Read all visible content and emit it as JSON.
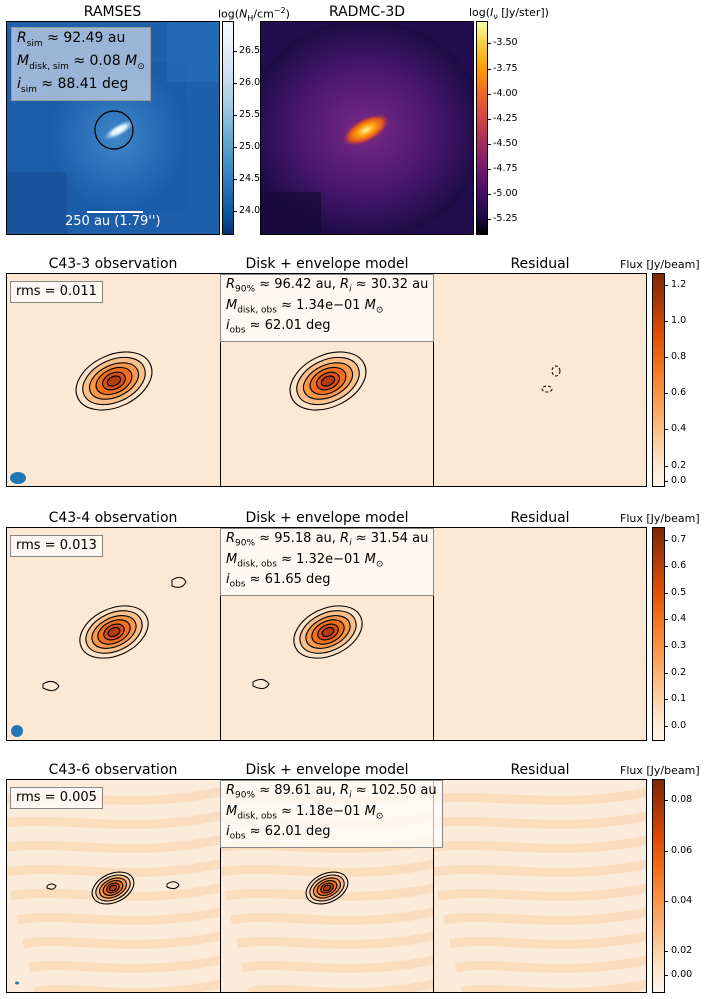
{
  "top": {
    "ramses": {
      "title": "RAMSES",
      "cbar_title": "log(N_H/cm^-2)",
      "cbar_ticks": [
        "26.5",
        "26.0",
        "25.5",
        "25.0",
        "24.5",
        "24.0"
      ],
      "info": [
        "R_sim ≈ 92.49 au",
        "M_disk,sim ≈ 0.08 M_⊙",
        "i_sim ≈ 88.41 deg"
      ],
      "scalebar": "250 au (1.79'')"
    },
    "radmc": {
      "title": "RADMC-3D",
      "cbar_title": "log(I_ν [Jy/ster])",
      "cbar_ticks": [
        "-3.50",
        "-3.75",
        "-4.00",
        "-4.25",
        "-4.50",
        "-4.75",
        "-5.00",
        "-5.25"
      ]
    }
  },
  "rows": [
    {
      "obs_title": "C43-3 observation",
      "model_title": "Disk + envelope model",
      "resid_title": "Residual",
      "cbar_title": "Flux [Jy/beam]",
      "rms": "rms = 0.011",
      "params": [
        "R_90% ≈ 96.42 au, R_i ≈ 30.32 au",
        "M_disk,obs ≈ 1.34e−01 M_⊙",
        "i_obs ≈ 62.01 deg"
      ],
      "cbar_ticks": [
        "1.2",
        "1.0",
        "0.8",
        "0.6",
        "0.4",
        "0.2",
        "0.0"
      ]
    },
    {
      "obs_title": "C43-4 observation",
      "model_title": "Disk + envelope model",
      "resid_title": "Residual",
      "cbar_title": "Flux [Jy/beam]",
      "rms": "rms = 0.013",
      "params": [
        "R_90% ≈ 95.18 au, R_i ≈ 31.54 au",
        "M_disk,obs ≈ 1.32e−01 M_⊙",
        "i_obs ≈ 61.65 deg"
      ],
      "cbar_ticks": [
        "0.7",
        "0.6",
        "0.5",
        "0.4",
        "0.3",
        "0.2",
        "0.1",
        "0.0"
      ]
    },
    {
      "obs_title": "C43-6 observation",
      "model_title": "Disk + envelope model",
      "resid_title": "Residual",
      "cbar_title": "Flux [Jy/beam]",
      "rms": "rms = 0.005",
      "params": [
        "R_90% ≈ 89.61 au, R_i ≈ 102.50 au",
        "M_disk,obs ≈ 1.18e−01 M_⊙",
        "i_obs ≈ 62.01 deg"
      ],
      "cbar_ticks": [
        "0.08",
        "0.06",
        "0.04",
        "0.02",
        "0.00"
      ]
    }
  ],
  "chart_data": [
    {
      "type": "heatmap",
      "title": "RAMSES",
      "colorbar_label": "log(N_H/cm^-2)",
      "colorbar_range": [
        23.6,
        26.9
      ],
      "colormap": "Blues",
      "annotations": [
        "R_sim ≈ 92.49 au",
        "M_disk,sim ≈ 0.08 M_⊙",
        "i_sim ≈ 88.41 deg",
        "250 au (1.79'')"
      ]
    },
    {
      "type": "heatmap",
      "title": "RADMC-3D",
      "colorbar_label": "log(I_ν [Jy/ster])",
      "colorbar_range": [
        -5.35,
        -3.35
      ],
      "colormap": "inferno"
    },
    {
      "type": "heatmap",
      "title": "C43-3 observation / Disk + envelope model / Residual",
      "colorbar_label": "Flux [Jy/beam]",
      "colorbar_range": [
        -0.04,
        1.28
      ],
      "rms": 0.011,
      "R90_au": 96.42,
      "Ri_au": 30.32,
      "Mdisk_obs_Msun": 0.134,
      "i_obs_deg": 62.01
    },
    {
      "type": "heatmap",
      "title": "C43-4 observation / Disk + envelope model / Residual",
      "colorbar_label": "Flux [Jy/beam]",
      "colorbar_range": [
        -0.03,
        0.79
      ],
      "rms": 0.013,
      "R90_au": 95.18,
      "Ri_au": 31.54,
      "Mdisk_obs_Msun": 0.132,
      "i_obs_deg": 61.65
    },
    {
      "type": "heatmap",
      "title": "C43-6 observation / Disk + envelope model / Residual",
      "colorbar_label": "Flux [Jy/beam]",
      "colorbar_range": [
        -0.01,
        0.093
      ],
      "rms": 0.005,
      "R90_au": 89.61,
      "Ri_au": 102.5,
      "Mdisk_obs_Msun": 0.118,
      "i_obs_deg": 62.01
    }
  ]
}
